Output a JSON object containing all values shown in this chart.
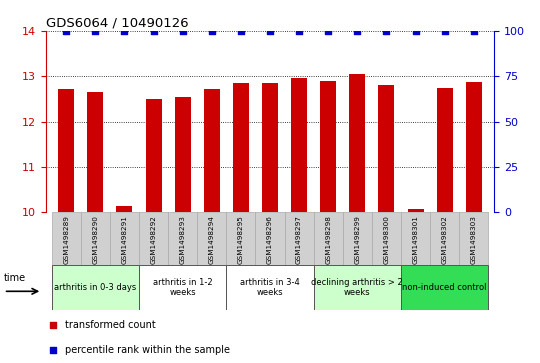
{
  "title": "GDS6064 / 10490126",
  "samples": [
    "GSM1498289",
    "GSM1498290",
    "GSM1498291",
    "GSM1498292",
    "GSM1498293",
    "GSM1498294",
    "GSM1498295",
    "GSM1498296",
    "GSM1498297",
    "GSM1498298",
    "GSM1498299",
    "GSM1498300",
    "GSM1498301",
    "GSM1498302",
    "GSM1498303"
  ],
  "bar_values": [
    12.72,
    12.65,
    10.15,
    12.5,
    12.55,
    12.72,
    12.85,
    12.85,
    12.97,
    12.9,
    13.05,
    12.8,
    10.08,
    12.73,
    12.88
  ],
  "percentile_values": [
    100,
    100,
    100,
    100,
    100,
    100,
    100,
    100,
    100,
    100,
    100,
    100,
    100,
    100,
    100
  ],
  "bar_color": "#cc0000",
  "percentile_color": "#0000cc",
  "ylim_left": [
    10,
    14
  ],
  "ylim_right": [
    0,
    100
  ],
  "yticks_left": [
    10,
    11,
    12,
    13,
    14
  ],
  "yticks_right": [
    0,
    25,
    50,
    75,
    100
  ],
  "groups": [
    {
      "label": "arthritis in 0-3 days",
      "start": 0,
      "end": 3,
      "color": "#ccffcc"
    },
    {
      "label": "arthritis in 1-2\nweeks",
      "start": 3,
      "end": 6,
      "color": "#ffffff"
    },
    {
      "label": "arthritis in 3-4\nweeks",
      "start": 6,
      "end": 9,
      "color": "#ffffff"
    },
    {
      "label": "declining arthritis > 2\nweeks",
      "start": 9,
      "end": 12,
      "color": "#ccffcc"
    },
    {
      "label": "non-induced control",
      "start": 12,
      "end": 15,
      "color": "#33dd55"
    }
  ],
  "legend_items": [
    {
      "label": "transformed count",
      "color": "#cc0000"
    },
    {
      "label": "percentile rank within the sample",
      "color": "#0000cc"
    }
  ],
  "fig_width": 5.4,
  "fig_height": 3.63,
  "dpi": 100
}
